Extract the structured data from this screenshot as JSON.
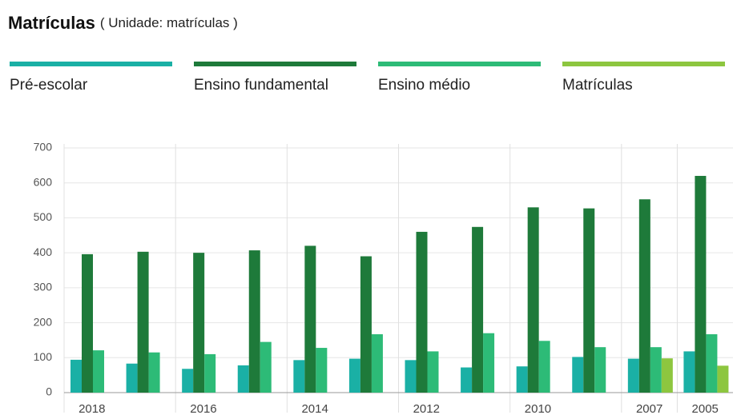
{
  "chart_data": {
    "type": "bar",
    "title": "Matrículas",
    "subtitle": "( Unidade: matrículas )",
    "categories": [
      "2018",
      null,
      "2016",
      null,
      "2014",
      null,
      "2012",
      null,
      "2010",
      null,
      "2007",
      "2005"
    ],
    "series": [
      {
        "name": "Pré-escolar",
        "color": "#1ab0a5",
        "values": [
          94,
          83,
          68,
          78,
          93,
          97,
          93,
          72,
          75,
          102,
          97,
          118
        ]
      },
      {
        "name": "Ensino fundamental",
        "color": "#1e7a3a",
        "values": [
          396,
          403,
          400,
          407,
          420,
          390,
          460,
          474,
          530,
          527,
          553,
          620
        ]
      },
      {
        "name": "Ensino médio",
        "color": "#2dbb77",
        "values": [
          121,
          115,
          110,
          145,
          128,
          167,
          118,
          170,
          148,
          130,
          130,
          167
        ]
      },
      {
        "name": "Matrículas",
        "color": "#8dc63f",
        "values": [
          null,
          null,
          null,
          null,
          null,
          null,
          null,
          null,
          null,
          null,
          98,
          77
        ]
      }
    ],
    "ylim": [
      0,
      700
    ],
    "yticks": [
      0,
      100,
      200,
      300,
      400,
      500,
      600,
      700
    ],
    "grid": true
  }
}
